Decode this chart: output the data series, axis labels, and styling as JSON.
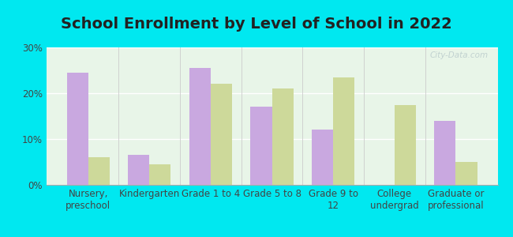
{
  "title": "School Enrollment by Level of School in 2022",
  "categories": [
    "Nursery,\npreschool",
    "Kindergarten",
    "Grade 1 to 4",
    "Grade 5 to 8",
    "Grade 9 to\n12",
    "College\nundergrad",
    "Graduate or\nprofessional"
  ],
  "zip_values": [
    24.5,
    6.5,
    25.5,
    17.0,
    12.0,
    0.0,
    14.0
  ],
  "ky_values": [
    6.0,
    4.5,
    22.0,
    21.0,
    23.5,
    17.5,
    5.0
  ],
  "zip_color": "#c9a8e0",
  "ky_color": "#cdd99a",
  "background_outer": "#00e8f0",
  "background_inner_top": "#e8f5e8",
  "background_inner_bottom": "#f8fff8",
  "ylim": [
    0,
    30
  ],
  "yticks": [
    0,
    10,
    20,
    30
  ],
  "ytick_labels": [
    "0%",
    "10%",
    "20%",
    "30%"
  ],
  "title_fontsize": 14,
  "tick_fontsize": 8.5,
  "legend_fontsize": 9,
  "bar_width": 0.35,
  "watermark": "City-Data.com",
  "watermark_color": "#bbcccc"
}
